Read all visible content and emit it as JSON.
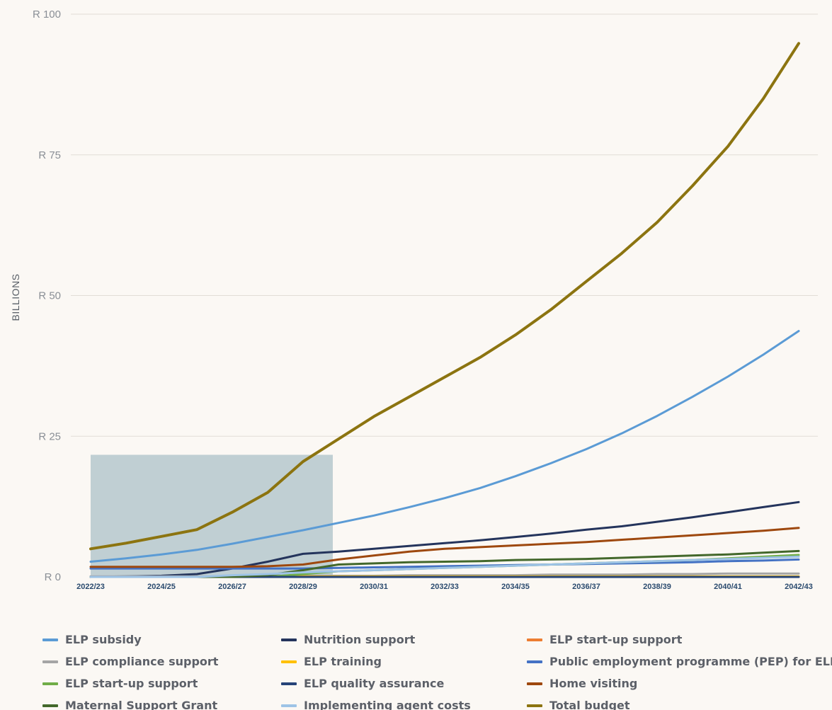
{
  "chart_data": {
    "type": "line",
    "ylabel": "BILLIONS",
    "xlabel": "",
    "ylim": [
      0,
      100
    ],
    "yticks": [
      {
        "value": 0,
        "label": "R 0"
      },
      {
        "value": 25,
        "label": "R 25"
      },
      {
        "value": 50,
        "label": "R 50"
      },
      {
        "value": 75,
        "label": "R 75"
      },
      {
        "value": 100,
        "label": "R 100"
      }
    ],
    "x": [
      "2022/23",
      "2023/24",
      "2024/25",
      "2025/26",
      "2026/27",
      "2027/28",
      "2028/29",
      "2029/30",
      "2030/31",
      "2031/32",
      "2032/33",
      "2033/34",
      "2034/35",
      "2035/36",
      "2036/37",
      "2037/38",
      "2038/39",
      "2039/40",
      "2040/41",
      "2041/42",
      "2042/43"
    ],
    "xtick_labels": [
      "2022/23",
      "2024/25",
      "2026/27",
      "2028/29",
      "2030/31",
      "2032/33",
      "2034/35",
      "2036/37",
      "2038/39",
      "2040/41",
      "2042/43"
    ],
    "highlight_range": {
      "x_start": "2022/23",
      "x_end": "2029/30",
      "y_top": 21.7,
      "color": "#b5c8cc"
    },
    "grid": true,
    "legend_position": "bottom",
    "series": [
      {
        "name": "ELP subsidy",
        "color": "#5b9bd5",
        "values": [
          2.7,
          3.3,
          4.0,
          4.8,
          5.9,
          7.1,
          8.3,
          9.6,
          10.9,
          12.4,
          14.0,
          15.8,
          17.9,
          20.2,
          22.7,
          25.5,
          28.6,
          32.0,
          35.6,
          39.5,
          43.7
        ]
      },
      {
        "name": "Nutrition support",
        "color": "#24345c",
        "values": [
          0.0,
          0.1,
          0.2,
          0.5,
          1.5,
          2.7,
          4.1,
          4.5,
          5.0,
          5.5,
          6.0,
          6.5,
          7.1,
          7.7,
          8.4,
          9.0,
          9.8,
          10.6,
          11.5,
          12.4,
          13.3
        ]
      },
      {
        "name": "ELP start-up support",
        "color": "#ed7d31",
        "values": [
          0.0,
          0.0,
          0.0,
          0.0,
          0.0,
          0.0,
          0.0,
          0.0,
          0.0,
          0.0,
          0.0,
          0.0,
          0.0,
          0.0,
          0.0,
          0.0,
          0.0,
          0.0,
          0.0,
          0.0,
          0.0
        ]
      },
      {
        "name": "ELP compliance support",
        "color": "#a5a5a5",
        "values": [
          0.1,
          0.1,
          0.1,
          0.1,
          0.1,
          0.2,
          0.2,
          0.2,
          0.2,
          0.3,
          0.3,
          0.3,
          0.3,
          0.4,
          0.4,
          0.4,
          0.5,
          0.5,
          0.6,
          0.6,
          0.6
        ]
      },
      {
        "name": "ELP training",
        "color": "#ffc000",
        "values": [
          0.0,
          0.0,
          0.0,
          0.0,
          0.1,
          0.1,
          0.1,
          0.1,
          0.1,
          0.1,
          0.1,
          0.1,
          0.1,
          0.1,
          0.1,
          0.1,
          0.1,
          0.1,
          0.1,
          0.1,
          0.1
        ]
      },
      {
        "name": "Public employment programme (PEP) for ELPs",
        "color": "#4472c4",
        "values": [
          1.5,
          1.5,
          1.5,
          1.5,
          1.5,
          1.5,
          1.5,
          1.6,
          1.7,
          1.8,
          1.9,
          2.0,
          2.1,
          2.2,
          2.3,
          2.4,
          2.5,
          2.6,
          2.8,
          2.9,
          3.1
        ]
      },
      {
        "name": "ELP start-up support",
        "color": "#70ad47",
        "values": [
          0.0,
          0.0,
          0.0,
          0.0,
          0.0,
          0.0,
          0.5,
          1.0,
          1.2,
          1.4,
          1.6,
          1.8,
          2.0,
          2.2,
          2.4,
          2.6,
          2.8,
          3.0,
          3.3,
          3.6,
          3.9
        ]
      },
      {
        "name": "ELP quality assurance",
        "color": "#264478",
        "values": [
          0.0,
          0.0,
          0.0,
          0.0,
          0.0,
          0.0,
          0.0,
          0.0,
          0.0,
          0.0,
          0.0,
          0.0,
          0.0,
          0.0,
          0.0,
          0.0,
          0.0,
          0.0,
          0.0,
          0.0,
          0.0
        ]
      },
      {
        "name": "Home visiting",
        "color": "#9e480e",
        "values": [
          1.8,
          1.8,
          1.8,
          1.8,
          1.8,
          1.9,
          2.2,
          3.1,
          3.8,
          4.5,
          5.0,
          5.3,
          5.6,
          5.9,
          6.2,
          6.6,
          7.0,
          7.4,
          7.8,
          8.2,
          8.7
        ]
      },
      {
        "name": "Maternal Support Grant",
        "color": "#43682b",
        "values": [
          0.0,
          0.0,
          0.0,
          0.0,
          0.0,
          0.3,
          1.2,
          2.2,
          2.4,
          2.6,
          2.7,
          2.8,
          3.0,
          3.1,
          3.2,
          3.4,
          3.6,
          3.8,
          4.0,
          4.3,
          4.6
        ]
      },
      {
        "name": "Implementing agent costs",
        "color": "#9dc3e6",
        "values": [
          0.0,
          0.0,
          0.0,
          0.0,
          0.3,
          0.5,
          0.8,
          1.0,
          1.2,
          1.4,
          1.6,
          1.8,
          2.0,
          2.2,
          2.4,
          2.6,
          2.8,
          3.0,
          3.2,
          3.4,
          3.6
        ]
      },
      {
        "name": "Total budget",
        "color": "#8c7410",
        "values": [
          5.0,
          6.0,
          7.2,
          8.4,
          11.5,
          15.0,
          20.5,
          24.5,
          28.5,
          32.0,
          35.5,
          39.0,
          43.0,
          47.5,
          52.5,
          57.5,
          63.0,
          69.5,
          76.5,
          85.0,
          94.8
        ]
      }
    ]
  }
}
